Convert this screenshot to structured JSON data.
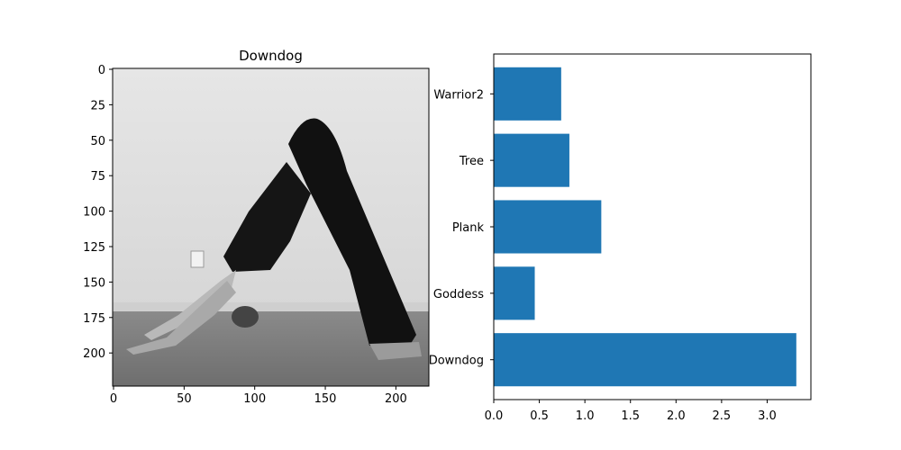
{
  "chart_data": [
    {
      "type": "image",
      "title": "Downdog",
      "image": "grayscale-photo-person-in-downward-dog-yoga-pose",
      "xlim": [
        0,
        224
      ],
      "ylim": [
        224,
        0
      ],
      "xticks": [
        0,
        50,
        100,
        150,
        200
      ],
      "yticks": [
        0,
        25,
        50,
        75,
        100,
        125,
        150,
        175,
        200
      ]
    },
    {
      "type": "bar",
      "orientation": "horizontal",
      "categories": [
        "Downdog",
        "Goddess",
        "Plank",
        "Tree",
        "Warrior2"
      ],
      "values": [
        3.32,
        0.45,
        1.18,
        0.83,
        0.74
      ],
      "xlim": [
        0,
        3.48
      ],
      "xticks": [
        0.0,
        0.5,
        1.0,
        1.5,
        2.0,
        2.5,
        3.0
      ],
      "xtick_labels": [
        "0.0",
        "0.5",
        "1.0",
        "1.5",
        "2.0",
        "2.5",
        "3.0"
      ],
      "bar_color": "#1f77b4",
      "grid": false
    }
  ]
}
